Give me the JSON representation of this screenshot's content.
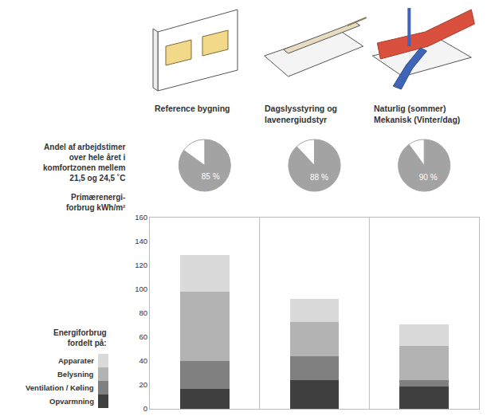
{
  "chart_data": [
    {
      "type": "pie",
      "annotations": [
        "Andel af arbejdstimer over hele året i komfortzonen mellem 21,5 og 24,5 ˚C"
      ],
      "colors": [
        "#a3a3a3",
        "#ffffff"
      ],
      "series": [
        {
          "values": [
            85,
            15
          ],
          "value_labels": [
            "85 %",
            null
          ]
        },
        {
          "values": [
            88,
            12
          ],
          "value_labels": [
            "88 %",
            null
          ]
        },
        {
          "values": [
            90,
            10
          ],
          "value_labels": [
            "90 %",
            null
          ]
        }
      ]
    },
    {
      "type": "bar",
      "stacked": true,
      "categories": [
        "Reference bygning",
        "Dagslysstyring og lavenergiudstyr",
        "Naturlig (sommer) Mekanisk (Vinter/dag)"
      ],
      "y_label": "Primærenergi-forbrug kWh/m²",
      "legend_title": "Energiforbrug fordelt på:",
      "legend": "left",
      "ylim": [
        0,
        160
      ],
      "yticks": [
        0,
        20,
        40,
        60,
        80,
        100,
        120,
        140,
        160
      ],
      "grid": false,
      "tick_labels": "y",
      "series": [
        {
          "name": "Opvarmning",
          "color": "#404040",
          "values": [
            17,
            24,
            19
          ]
        },
        {
          "name": "Ventilation / Køling",
          "color": "#808080",
          "values": [
            23,
            20,
            5
          ]
        },
        {
          "name": "Belysning",
          "color": "#b3b3b3",
          "values": [
            58,
            29,
            29
          ]
        },
        {
          "name": "Apparater",
          "color": "#dadada",
          "values": [
            31,
            19,
            18
          ]
        }
      ]
    }
  ]
}
